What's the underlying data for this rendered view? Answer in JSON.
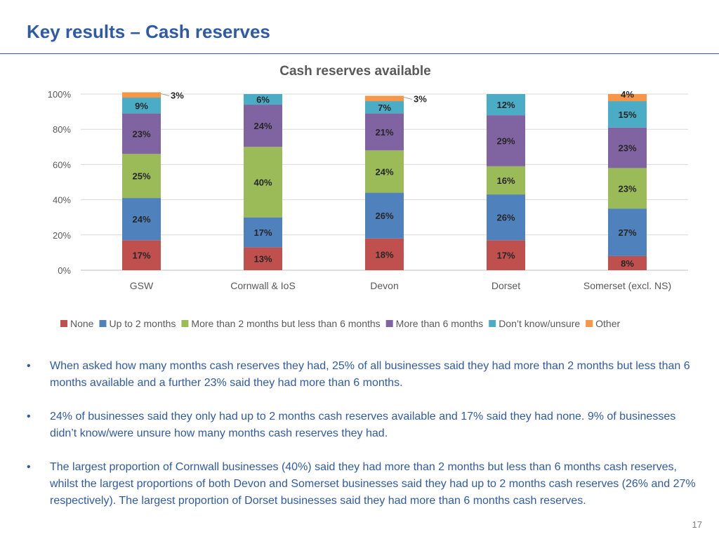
{
  "slide": {
    "title": "Key results – Cash reserves",
    "page_number": "17"
  },
  "chart_data": {
    "type": "bar",
    "stacked": true,
    "title": "Cash reserves available",
    "categories": [
      "GSW",
      "Cornwall & IoS",
      "Devon",
      "Dorset",
      "Somerset (excl. NS)"
    ],
    "ylim": [
      0,
      100
    ],
    "yticks": [
      "0%",
      "20%",
      "40%",
      "60%",
      "80%",
      "100%"
    ],
    "grid": true,
    "legend_position": "bottom",
    "series": [
      {
        "name": "None",
        "color": "#c0504d",
        "values": [
          17,
          13,
          18,
          17,
          8
        ]
      },
      {
        "name": "Up to 2 months",
        "color": "#4f81bd",
        "values": [
          24,
          17,
          26,
          26,
          27
        ]
      },
      {
        "name": "More than 2 months but less than 6 months",
        "color": "#9bbb59",
        "values": [
          25,
          40,
          24,
          16,
          23
        ]
      },
      {
        "name": "More than 6 months",
        "color": "#8064a2",
        "values": [
          23,
          24,
          21,
          29,
          23
        ]
      },
      {
        "name": "Don’t know/unsure",
        "color": "#4bacc6",
        "values": [
          9,
          6,
          7,
          12,
          15
        ]
      },
      {
        "name": "Other",
        "color": "#f79646",
        "values": [
          3,
          0,
          3,
          0,
          4
        ]
      }
    ],
    "data_labels": [
      [
        "17%",
        "24%",
        "25%",
        "23%",
        "9%",
        "3%"
      ],
      [
        "13%",
        "17%",
        "40%",
        "24%",
        "6%",
        ""
      ],
      [
        "18%",
        "26%",
        "24%",
        "21%",
        "7%",
        "3%"
      ],
      [
        "17%",
        "26%",
        "16%",
        "29%",
        "12%",
        ""
      ],
      [
        "8%",
        "27%",
        "23%",
        "23%",
        "15%",
        "4%"
      ]
    ]
  },
  "bullets": [
    "When asked how many months cash reserves they had, 25% of all businesses said they had more than 2 months but less than 6 months available and a further 23% said they had more than 6 months.",
    "24% of businesses said they only had up to 2 months cash reserves available and 17% said they had none.  9% of businesses didn’t know/were unsure how many months cash reserves they had.",
    "The largest proportion of Cornwall businesses (40%) said they had more than 2 months but less than 6 months cash reserves, whilst the largest proportions of both Devon and Somerset businesses said they had up to 2 months cash reserves (26% and 27% respectively).  The largest proportion of Dorset businesses said they had more than 6 months cash reserves."
  ],
  "bullet_marker": "•"
}
